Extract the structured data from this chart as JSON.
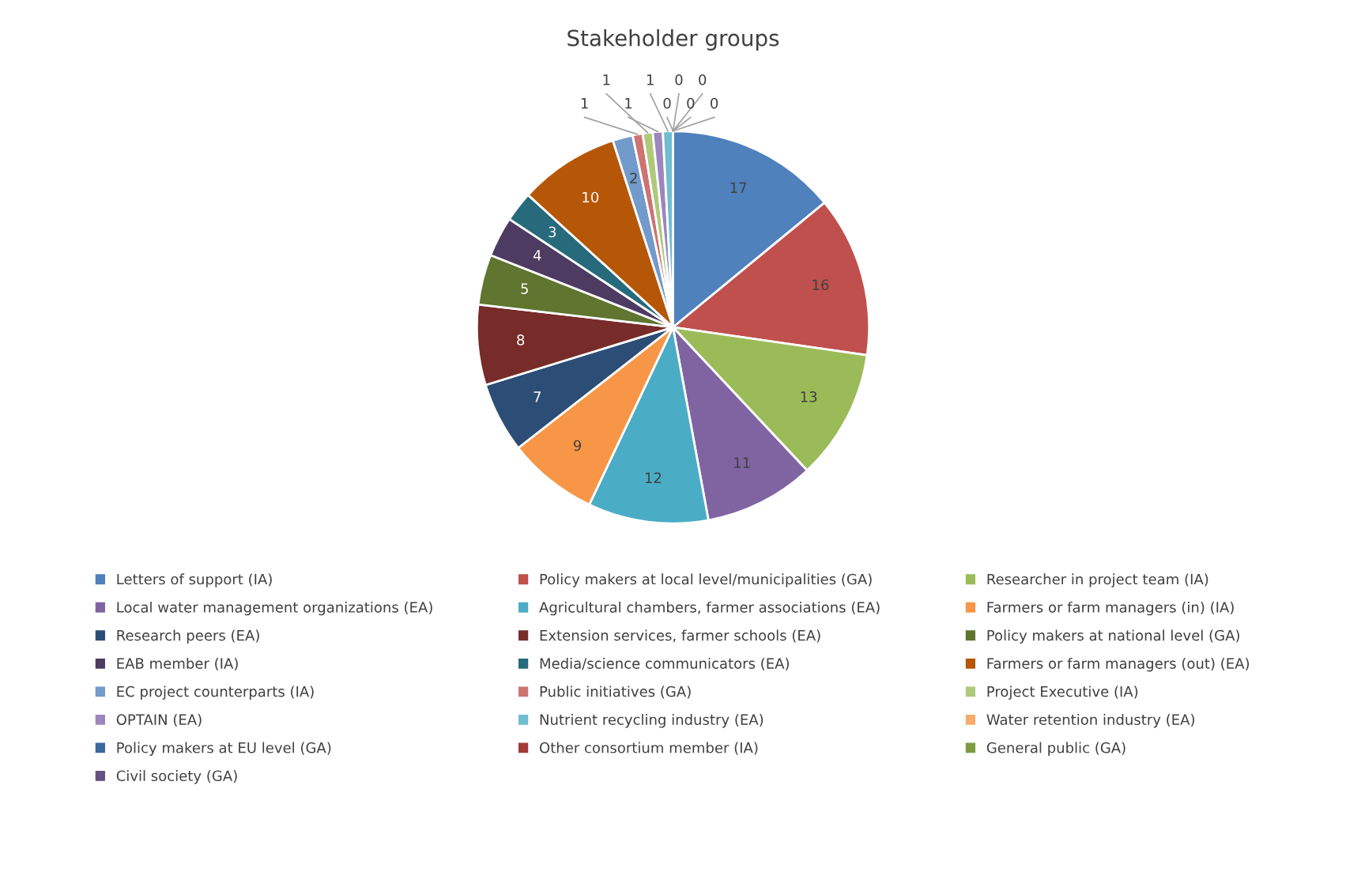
{
  "chart_data": {
    "type": "pie",
    "title": "Stakeholder groups",
    "categories": [
      "Letters of support (IA)",
      "Policy makers at local level/municipalities (GA)",
      "Researcher in project team (IA)",
      "Local water management organizations (EA)",
      "Agricultural chambers, farmer associations (EA)",
      "Farmers or farm managers (in) (IA)",
      "Research peers (EA)",
      "Extension services, farmer schools (EA)",
      "Policy makers at national level (GA)",
      "EAB member (IA)",
      "Media/science communicators (EA)",
      "Farmers or farm managers (out) (EA)",
      "EC project counterparts (IA)",
      "Public initiatives (GA)",
      "Project Executive (IA)",
      "OPTAIN (EA)",
      "Nutrient recycling industry (EA)",
      "Water retention industry (EA)",
      "Policy makers at EU level (GA)",
      "Other consortium member (IA)",
      "General public (GA)",
      "Civil society (GA)"
    ],
    "values": [
      17,
      16,
      13,
      11,
      12,
      9,
      7,
      8,
      5,
      4,
      3,
      10,
      2,
      1,
      1,
      1,
      1,
      0,
      0,
      0,
      0,
      0
    ],
    "colors": [
      "#4f81bd",
      "#c0504d",
      "#9bbb59",
      "#8064a2",
      "#4bacc6",
      "#f79646",
      "#2c4d75",
      "#772c2a",
      "#5f7530",
      "#4d3b62",
      "#276a7c",
      "#b65708",
      "#729aca",
      "#cd7371",
      "#afc97a",
      "#9d85be",
      "#6fbdd1",
      "#f9ab6b",
      "#3a679c",
      "#9f3b38",
      "#7e9c40",
      "#664f83"
    ],
    "value_labels": [
      "17",
      "16",
      "13",
      "11",
      "12",
      "9",
      "7",
      "8",
      "5",
      "4",
      "3",
      "10",
      "2",
      "1",
      "1",
      "1",
      "1",
      "0",
      "0",
      "0",
      "0",
      "0"
    ],
    "legend": "bottom"
  }
}
